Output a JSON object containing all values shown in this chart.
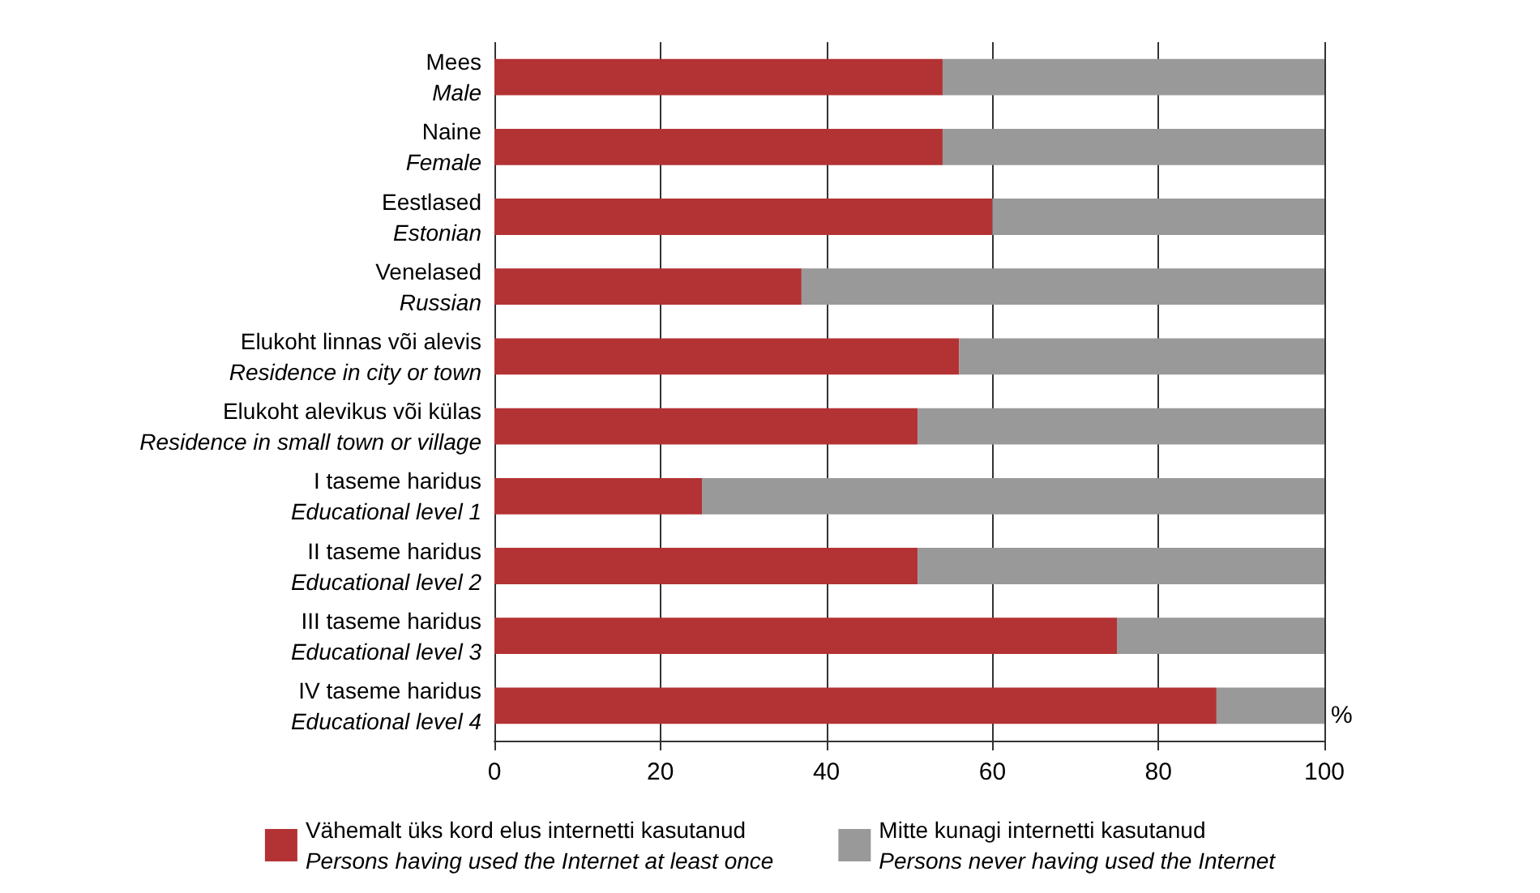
{
  "chart_data": {
    "type": "bar",
    "orientation": "horizontal",
    "stacked": true,
    "categories": [
      "Mees\nMale",
      "Naine\nFemale",
      "Eestlased\nEstonian",
      "Venelased\nRussian",
      "Elukoht linnas või alevis\nResidence in city or town",
      "Elukoht alevikus või külas\nResidence in small town or village",
      "I taseme haridus\nEducational level 1",
      "II taseme haridus\nEducational level 2",
      "III taseme haridus\nEducational level 3",
      "IV taseme haridus\nEducational level 4"
    ],
    "series": [
      {
        "name": "Vähemalt üks kord elus internetti kasutanud\nPersons having used the Internet at least once",
        "color": "#b33234",
        "values": [
          54,
          54,
          60,
          37,
          56,
          51,
          25,
          51,
          75,
          87
        ]
      },
      {
        "name": "Mitte kunagi internetti kasutanud\nPersons never having used the Internet",
        "color": "#999999",
        "values": [
          46,
          46,
          40,
          63,
          44,
          49,
          75,
          49,
          25,
          13
        ]
      }
    ],
    "xlabel": "%",
    "xlim": [
      0,
      100
    ],
    "xticks": [
      0,
      20,
      40,
      60,
      80,
      100
    ],
    "grid": "x",
    "legend": "bottom"
  }
}
